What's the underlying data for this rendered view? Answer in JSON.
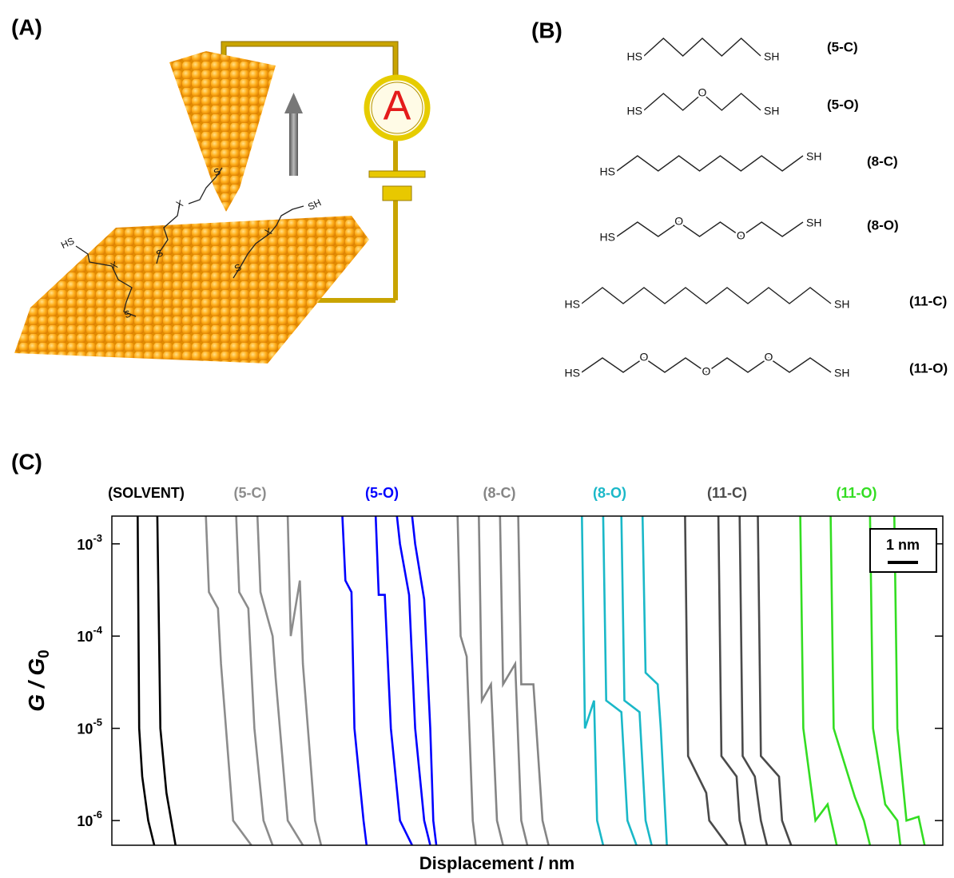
{
  "panel_a": {
    "label": "(A)",
    "meter": "A",
    "atoms": [
      "HS",
      "X",
      "S",
      "X",
      "S",
      "S",
      "SH",
      "X",
      "S"
    ]
  },
  "panel_b": {
    "label": "(B)",
    "molecules": [
      {
        "name": "(5-C)",
        "atoms": [
          "HS",
          "SH"
        ]
      },
      {
        "name": "(5-O)",
        "atoms": [
          "HS",
          "O",
          "SH"
        ]
      },
      {
        "name": "(8-C)",
        "atoms": [
          "HS",
          "SH"
        ]
      },
      {
        "name": "(8-O)",
        "atoms": [
          "HS",
          "O",
          "O",
          "SH"
        ]
      },
      {
        "name": "(11-C)",
        "atoms": [
          "HS",
          "SH"
        ]
      },
      {
        "name": "(11-O)",
        "atoms": [
          "HS",
          "O",
          "O",
          "O",
          "SH"
        ]
      }
    ]
  },
  "chart_data": {
    "type": "line",
    "label": "(C)",
    "ylabel": "G / G",
    "ylabel_sub": "0",
    "xlabel": "Displacement / nm",
    "log_y": true,
    "xlim": [
      0,
      27.4
    ],
    "ylim": [
      5.4e-07,
      0.002
    ],
    "yticks": [
      {
        "value": 0.001,
        "label": "10",
        "exponent": "-3"
      },
      {
        "value": 0.0001,
        "label": "10",
        "exponent": "-4"
      },
      {
        "value": 1e-05,
        "label": "10",
        "exponent": "-5"
      },
      {
        "value": 1e-06,
        "label": "10",
        "exponent": "-6"
      }
    ],
    "scale_bar": {
      "label": "1 nm",
      "length": 1
    },
    "groups": [
      {
        "name": "(SOLVENT)",
        "color": "#000000",
        "traces": [
          {
            "x": [
              0.85,
              0.9,
              1.0,
              1.2,
              1.4
            ],
            "y": [
              0.002,
              1e-05,
              3e-06,
              1e-06,
              5.4e-07
            ]
          },
          {
            "x": [
              1.5,
              1.6,
              1.8,
              2.1
            ],
            "y": [
              0.002,
              1e-05,
              2e-06,
              5.4e-07
            ]
          }
        ]
      },
      {
        "name": "(5-C)",
        "color": "#8c8c8c",
        "traces": [
          {
            "x": [
              3.1,
              3.2,
              3.5,
              3.6,
              4.0,
              4.6
            ],
            "y": [
              0.002,
              0.0003,
              0.0002,
              5e-05,
              1e-06,
              5.4e-07
            ]
          },
          {
            "x": [
              4.1,
              4.2,
              4.5,
              4.7,
              5.0,
              5.3
            ],
            "y": [
              0.002,
              0.0003,
              0.0002,
              1e-05,
              1e-06,
              5.4e-07
            ]
          },
          {
            "x": [
              4.8,
              4.9,
              5.3,
              5.4,
              5.8,
              6.3
            ],
            "y": [
              0.002,
              0.0003,
              0.0001,
              3.5e-05,
              1e-06,
              5.4e-07
            ]
          },
          {
            "x": [
              5.8,
              5.9,
              6.2,
              6.3,
              6.7,
              6.9
            ],
            "y": [
              0.002,
              0.0001,
              0.0004,
              5e-05,
              1e-06,
              5.4e-07
            ]
          }
        ]
      },
      {
        "name": "(5-O)",
        "color": "#0000ff",
        "traces": [
          {
            "x": [
              7.6,
              7.7,
              7.9,
              8.0,
              8.3,
              8.4
            ],
            "y": [
              0.002,
              0.0004,
              0.0003,
              1e-05,
              1e-06,
              5.4e-07
            ]
          },
          {
            "x": [
              8.7,
              8.8,
              9.0,
              9.2,
              9.5,
              9.9
            ],
            "y": [
              0.002,
              0.00028,
              0.00028,
              1e-05,
              1e-06,
              5.4e-07
            ]
          },
          {
            "x": [
              9.4,
              9.5,
              9.8,
              10.0,
              10.3,
              10.5
            ],
            "y": [
              0.002,
              0.001,
              0.00028,
              1e-05,
              1e-06,
              5.4e-07
            ]
          },
          {
            "x": [
              9.9,
              10.0,
              10.3,
              10.5,
              10.6,
              10.7
            ],
            "y": [
              0.002,
              0.001,
              0.00025,
              1e-05,
              1e-06,
              5.4e-07
            ]
          }
        ]
      },
      {
        "name": "(8-C)",
        "color": "#858585",
        "traces": [
          {
            "x": [
              11.4,
              11.5,
              11.7,
              11.9,
              12.0
            ],
            "y": [
              0.002,
              0.0001,
              6e-05,
              1e-06,
              5.4e-07
            ]
          },
          {
            "x": [
              12.1,
              12.2,
              12.5,
              12.7,
              12.9
            ],
            "y": [
              0.002,
              2e-05,
              3e-05,
              1e-06,
              5.4e-07
            ]
          },
          {
            "x": [
              12.8,
              12.9,
              13.3,
              13.5,
              13.7
            ],
            "y": [
              0.002,
              3e-05,
              5e-05,
              1e-06,
              5.4e-07
            ]
          },
          {
            "x": [
              13.4,
              13.5,
              13.9,
              14.2,
              14.4
            ],
            "y": [
              0.002,
              3e-05,
              3e-05,
              1e-06,
              5.4e-07
            ]
          }
        ]
      },
      {
        "name": "(8-O)",
        "color": "#1ab8c8",
        "traces": [
          {
            "x": [
              15.5,
              15.6,
              15.9,
              16.0,
              16.2
            ],
            "y": [
              0.002,
              1e-05,
              2e-05,
              1e-06,
              5.4e-07
            ]
          },
          {
            "x": [
              16.2,
              16.3,
              16.8,
              17.0,
              17.3
            ],
            "y": [
              0.002,
              2e-05,
              1.5e-05,
              1e-06,
              5.4e-07
            ]
          },
          {
            "x": [
              16.8,
              16.9,
              17.4,
              17.6,
              17.8
            ],
            "y": [
              0.002,
              2e-05,
              1.5e-05,
              1e-06,
              5.4e-07
            ]
          },
          {
            "x": [
              17.5,
              17.6,
              18.0,
              18.1,
              18.3
            ],
            "y": [
              0.002,
              4e-05,
              3e-05,
              1e-05,
              5.4e-07
            ]
          }
        ]
      },
      {
        "name": "(11-C)",
        "color": "#4a4a4a",
        "traces": [
          {
            "x": [
              18.9,
              19.0,
              19.6,
              19.7,
              20.3
            ],
            "y": [
              0.002,
              5e-06,
              2e-06,
              1e-06,
              5.4e-07
            ]
          },
          {
            "x": [
              20.0,
              20.1,
              20.6,
              20.7,
              20.9
            ],
            "y": [
              0.002,
              5e-06,
              3e-06,
              1e-06,
              5.4e-07
            ]
          },
          {
            "x": [
              20.7,
              20.8,
              21.2,
              21.4,
              21.6
            ],
            "y": [
              0.002,
              5e-06,
              3e-06,
              1e-06,
              5.4e-07
            ]
          },
          {
            "x": [
              21.3,
              21.4,
              22.0,
              22.1,
              22.4
            ],
            "y": [
              0.002,
              5e-06,
              3e-06,
              1e-06,
              5.4e-07
            ]
          }
        ]
      },
      {
        "name": "(11-O)",
        "color": "#33dd22",
        "traces": [
          {
            "x": [
              22.7,
              22.8,
              23.2,
              23.6,
              23.9
            ],
            "y": [
              0.002,
              1e-05,
              1e-06,
              1.5e-06,
              5.4e-07
            ]
          },
          {
            "x": [
              23.7,
              23.8,
              24.5,
              24.8,
              25.0
            ],
            "y": [
              0.002,
              1e-05,
              1.8e-06,
              1e-06,
              5.4e-07
            ]
          },
          {
            "x": [
              25.0,
              25.1,
              25.5,
              25.9,
              26.0
            ],
            "y": [
              0.002,
              1e-05,
              1.5e-06,
              1e-06,
              5.4e-07
            ]
          },
          {
            "x": [
              25.8,
              25.9,
              26.2,
              26.6,
              26.8
            ],
            "y": [
              0.002,
              1e-05,
              1e-06,
              1.1e-06,
              5.4e-07
            ]
          }
        ]
      }
    ]
  }
}
